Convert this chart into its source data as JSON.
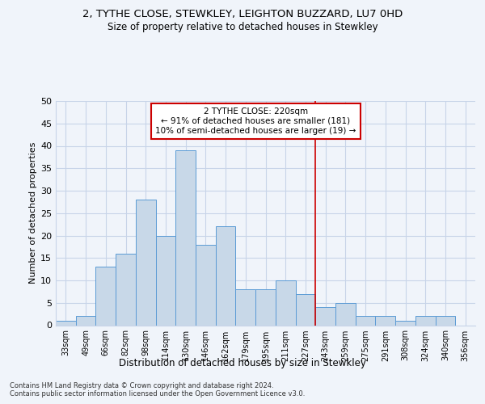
{
  "title_line1": "2, TYTHE CLOSE, STEWKLEY, LEIGHTON BUZZARD, LU7 0HD",
  "title_line2": "Size of property relative to detached houses in Stewkley",
  "xlabel": "Distribution of detached houses by size in Stewkley",
  "ylabel": "Number of detached properties",
  "categories": [
    "33sqm",
    "49sqm",
    "66sqm",
    "82sqm",
    "98sqm",
    "114sqm",
    "130sqm",
    "146sqm",
    "162sqm",
    "179sqm",
    "195sqm",
    "211sqm",
    "227sqm",
    "243sqm",
    "259sqm",
    "275sqm",
    "291sqm",
    "308sqm",
    "324sqm",
    "340sqm",
    "356sqm"
  ],
  "values": [
    1,
    2,
    13,
    16,
    28,
    20,
    39,
    18,
    22,
    8,
    8,
    10,
    7,
    4,
    5,
    2,
    2,
    1,
    2,
    2,
    0
  ],
  "bar_color": "#c8d8e8",
  "bar_edge_color": "#5b9bd5",
  "line_x_index": 12.5,
  "annotation_text": "2 TYTHE CLOSE: 220sqm\n← 91% of detached houses are smaller (181)\n10% of semi-detached houses are larger (19) →",
  "annotation_box_color": "#cc0000",
  "ylim": [
    0,
    50
  ],
  "yticks": [
    0,
    5,
    10,
    15,
    20,
    25,
    30,
    35,
    40,
    45,
    50
  ],
  "footnote": "Contains HM Land Registry data © Crown copyright and database right 2024.\nContains public sector information licensed under the Open Government Licence v3.0.",
  "bg_color": "#f0f4fa",
  "grid_color": "#c8d4e8",
  "title1_fontsize": 9.5,
  "title2_fontsize": 8.5,
  "ylabel_fontsize": 8.0,
  "xlabel_fontsize": 8.5,
  "tick_fontsize": 7.0,
  "ytick_fontsize": 8.0,
  "annot_fontsize": 7.5,
  "footnote_fontsize": 6.0
}
